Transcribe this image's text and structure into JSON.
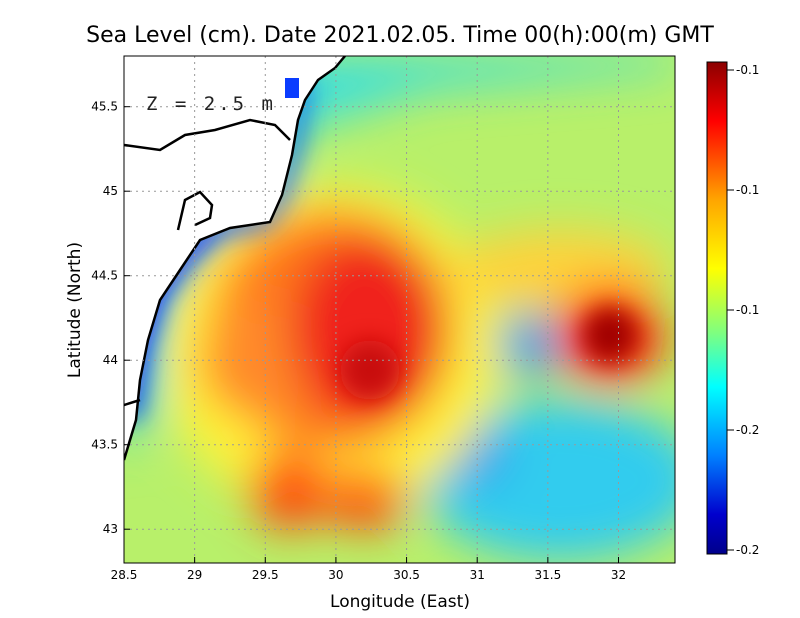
{
  "chart_data": {
    "type": "heatmap",
    "title": "Sea Level (cm). Date 2021.02.05. Time 00(h):00(m) GMT",
    "xlabel": "Longitude (East)",
    "ylabel": "Latitude (North)",
    "annotation": "Z = 2.5 m",
    "xlim": [
      28.5,
      32.4
    ],
    "ylim": [
      42.8,
      45.8
    ],
    "x_ticks": [
      "28.5",
      "29",
      "29.5",
      "30",
      "30.5",
      "31",
      "31.5",
      "32"
    ],
    "y_ticks": [
      "43",
      "43.5",
      "44",
      "44.5",
      "45",
      "45.5"
    ],
    "grid": true,
    "colorbar": {
      "tick_labels": [
        "-0.1",
        "-0.1",
        "-0.1",
        "-0.2",
        "-0.2"
      ],
      "colors": [
        "#8b0000",
        "#ff0000",
        "#ffa500",
        "#ffff00",
        "#7fff7f",
        "#00ffff",
        "#0080ff",
        "#0000cd",
        "#00008b"
      ]
    },
    "features": [
      {
        "label": "high",
        "lon": 30.3,
        "lat": 44.1
      },
      {
        "label": "high",
        "lon": 31.9,
        "lat": 44.1
      },
      {
        "label": "high",
        "lon": 29.6,
        "lat": 43.2
      },
      {
        "label": "high",
        "lon": 30.2,
        "lat": 43.15
      },
      {
        "label": "low",
        "lon": 28.7,
        "lat": 44.0
      }
    ]
  }
}
